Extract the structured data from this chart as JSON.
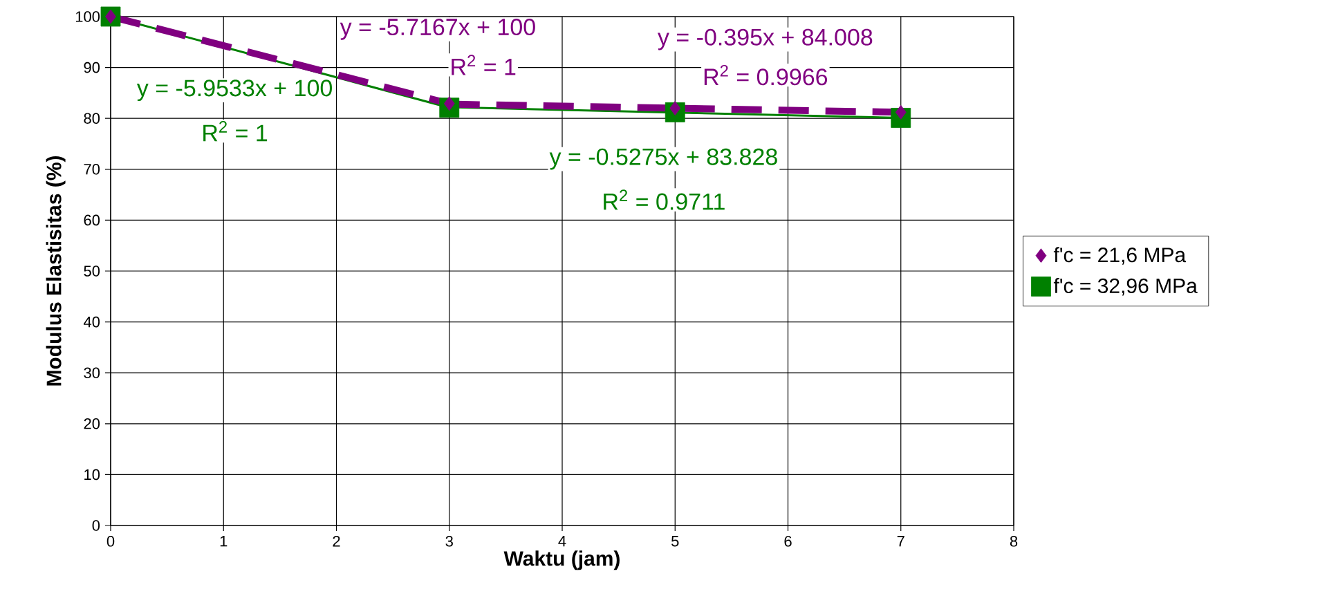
{
  "chart_data": {
    "type": "scatter",
    "xlabel": "Waktu (jam)",
    "ylabel": "Modulus Elastisitas (%)",
    "xlim": [
      0,
      8
    ],
    "xticks": [
      0,
      1,
      2,
      3,
      4,
      5,
      6,
      7,
      8
    ],
    "ylim": [
      0,
      100
    ],
    "yticks": [
      0,
      10,
      20,
      30,
      40,
      50,
      60,
      70,
      80,
      90,
      100
    ],
    "grid": true,
    "legend": "right",
    "series": [
      {
        "type": "line",
        "color": "#008000",
        "x": [
          0,
          3
        ],
        "values": [
          100,
          82.1
        ],
        "marker": "none",
        "line_style": "solid"
      },
      {
        "type": "line",
        "color": "#008000",
        "x": [
          3,
          7
        ],
        "values": [
          82.2,
          80.1
        ],
        "marker": "none",
        "line_style": "solid"
      },
      {
        "type": "line",
        "color": "#800080",
        "x": [
          0,
          3
        ],
        "values": [
          100,
          82.9
        ],
        "marker": "none",
        "line_style": "dashed"
      },
      {
        "type": "line",
        "color": "#800080",
        "x": [
          3,
          7
        ],
        "values": [
          82.8,
          81.2
        ],
        "marker": "none",
        "line_style": "dashed"
      },
      {
        "name": "f'c = 32,96 MPa",
        "color": "#008000",
        "marker": "square",
        "x": [
          0,
          3,
          5,
          7
        ],
        "values": [
          100,
          82.1,
          81.2,
          80.1
        ]
      },
      {
        "name": "f'c = 21,6 MPa",
        "color": "#800080",
        "marker": "diamond",
        "x": [
          0,
          3,
          5,
          7
        ],
        "values": [
          100,
          82.9,
          82.0,
          81.2
        ]
      }
    ],
    "annotations": [
      "y = -5.7167x + 100",
      "R$^{2}$ = 1",
      "y = -0.395x + 84.008",
      "R$^{2}$ = 0.9966",
      "y = -5.9533x + 100",
      "R$^{2}$ = 1",
      "y = -0.5275x + 83.828",
      "R$^{2}$ = 0.9711"
    ]
  }
}
